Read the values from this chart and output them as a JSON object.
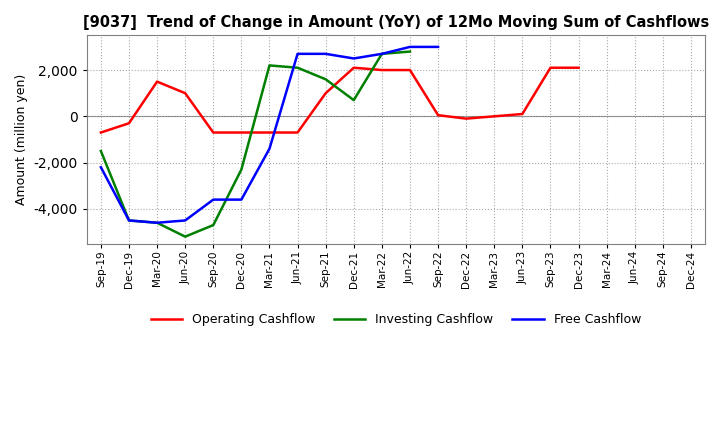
{
  "title": "[9037]  Trend of Change in Amount (YoY) of 12Mo Moving Sum of Cashflows",
  "ylabel": "Amount (million yen)",
  "x_labels": [
    "Sep-19",
    "Dec-19",
    "Mar-20",
    "Jun-20",
    "Sep-20",
    "Dec-20",
    "Mar-21",
    "Jun-21",
    "Sep-21",
    "Dec-21",
    "Mar-22",
    "Jun-22",
    "Sep-22",
    "Dec-22",
    "Mar-23",
    "Jun-23",
    "Sep-23",
    "Dec-23",
    "Mar-24",
    "Jun-24",
    "Sep-24",
    "Dec-24"
  ],
  "operating": [
    -700,
    -300,
    1500,
    1000,
    -700,
    -700,
    -700,
    -700,
    1000,
    2100,
    2000,
    2000,
    50,
    -100,
    0,
    100,
    2100,
    2100,
    null,
    null,
    null,
    null
  ],
  "investing": [
    -1500,
    -4500,
    -4600,
    -5200,
    -4700,
    -2300,
    2200,
    2100,
    1600,
    700,
    2700,
    2800,
    null,
    null,
    null,
    null,
    null,
    null,
    null,
    null,
    null,
    null
  ],
  "free": [
    -2200,
    -4500,
    -4600,
    -4500,
    -3600,
    -3600,
    -1400,
    2700,
    2700,
    2500,
    2700,
    3000,
    3000,
    null,
    null,
    null,
    null,
    null,
    null,
    null,
    null,
    null
  ],
  "op_color": "#ff0000",
  "inv_color": "#008000",
  "free_color": "#0000ff",
  "ylim": [
    -5500,
    3500
  ],
  "yticks": [
    -4000,
    -2000,
    0,
    2000
  ],
  "background_color": "#ffffff",
  "grid_color": "#aaaaaa"
}
